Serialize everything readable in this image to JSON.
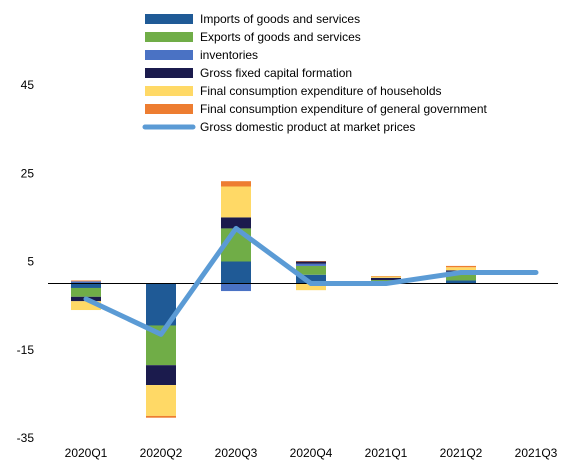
{
  "chart_data": {
    "type": "bar",
    "subtype": "stacked-bar-with-line",
    "categories": [
      "2020Q1",
      "2020Q2",
      "2020Q3",
      "2020Q4",
      "2021Q1",
      "2021Q2",
      "2021Q3"
    ],
    "ylim": [
      -35,
      45
    ],
    "yticks": [
      -35,
      -15,
      5,
      25,
      45
    ],
    "ytick_labels": [
      "-35",
      "-15",
      "5",
      "25",
      "45"
    ],
    "legend_position": "top",
    "series": [
      {
        "name": "Imports of goods and services",
        "kind": "bar",
        "color": "#1f5a96",
        "values": [
          -1,
          -9.5,
          5,
          2,
          0.3,
          0.7,
          0
        ]
      },
      {
        "name": "Exports of goods and services",
        "kind": "bar",
        "color": "#70ad47",
        "values": [
          -2,
          -9,
          7.5,
          2,
          0.5,
          1.5,
          0
        ]
      },
      {
        "name": "inventories",
        "kind": "bar",
        "color": "#4a72c4",
        "values": [
          0.5,
          0,
          -1.7,
          0.5,
          0,
          0.5,
          0
        ]
      },
      {
        "name": "Gross fixed capital formation",
        "kind": "bar",
        "color": "#1b1b4d",
        "values": [
          -1,
          -4.5,
          2.5,
          0.5,
          0.5,
          0.3,
          0
        ]
      },
      {
        "name": "Final consumption expenditure of households",
        "kind": "bar",
        "color": "#ffd966",
        "values": [
          -2,
          -7,
          7,
          -1.5,
          0.3,
          0.7,
          0
        ]
      },
      {
        "name": "Final consumption expenditure of general government",
        "kind": "bar",
        "color": "#ed7d31",
        "values": [
          0.2,
          -0.4,
          1.2,
          0.1,
          0.1,
          0.3,
          0
        ]
      },
      {
        "name": "Gross domestic product at market prices",
        "kind": "line",
        "color": "#5b9bd5",
        "values": [
          -3.5,
          -11.5,
          12.5,
          0,
          0,
          2.5,
          2.5
        ]
      }
    ]
  }
}
